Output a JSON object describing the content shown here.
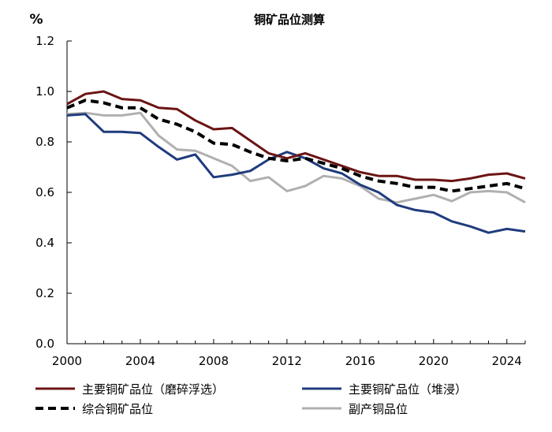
{
  "chart_data": {
    "type": "line",
    "title": "铜矿品位测算",
    "ylabel": "%",
    "xlabel": "",
    "xlim": [
      2000,
      2025
    ],
    "ylim": [
      0,
      1.2
    ],
    "yticks": [
      "0.0",
      "0.2",
      "0.4",
      "0.6",
      "0.8",
      "1.0",
      "1.2"
    ],
    "ytick_values": [
      0,
      0.2,
      0.4,
      0.6,
      0.8,
      1.0,
      1.2
    ],
    "xticks": [
      "2000",
      "2004",
      "2008",
      "2012",
      "2016",
      "2020",
      "2024"
    ],
    "xtick_values": [
      2000,
      2004,
      2008,
      2012,
      2016,
      2020,
      2024
    ],
    "x": [
      2000,
      2001,
      2002,
      2003,
      2004,
      2005,
      2006,
      2007,
      2008,
      2009,
      2010,
      2011,
      2012,
      2013,
      2014,
      2015,
      2016,
      2017,
      2018,
      2019,
      2020,
      2021,
      2022,
      2023,
      2024,
      2025
    ],
    "series": [
      {
        "name": "主要铜矿品位（磨碎浮选）",
        "color": "#6b1414",
        "style": "solid",
        "values": [
          0.95,
          0.99,
          1.0,
          0.97,
          0.965,
          0.935,
          0.93,
          0.885,
          0.85,
          0.855,
          0.805,
          0.755,
          0.735,
          0.755,
          0.73,
          0.705,
          0.68,
          0.665,
          0.665,
          0.65,
          0.65,
          0.645,
          0.655,
          0.67,
          0.675,
          0.655
        ]
      },
      {
        "name": "主要铜矿品位（堆浸）",
        "color": "#1f3c7d",
        "style": "solid",
        "values": [
          0.905,
          0.91,
          0.84,
          0.84,
          0.835,
          0.78,
          0.73,
          0.75,
          0.66,
          0.67,
          0.685,
          0.73,
          0.76,
          0.735,
          0.695,
          0.675,
          0.63,
          0.6,
          0.55,
          0.53,
          0.52,
          0.485,
          0.465,
          0.44,
          0.455,
          0.445
        ]
      },
      {
        "name": "综合铜矿品位",
        "color": "#000000",
        "style": "dashed",
        "values": [
          0.935,
          0.965,
          0.955,
          0.935,
          0.935,
          0.89,
          0.87,
          0.84,
          0.795,
          0.79,
          0.76,
          0.735,
          0.725,
          0.735,
          0.715,
          0.695,
          0.665,
          0.645,
          0.635,
          0.62,
          0.62,
          0.605,
          0.615,
          0.625,
          0.635,
          0.615
        ]
      },
      {
        "name": "副产铜品位",
        "color": "#b0b0b0",
        "style": "solid",
        "values": [
          0.91,
          0.915,
          0.905,
          0.905,
          0.915,
          0.825,
          0.77,
          0.765,
          0.735,
          0.705,
          0.645,
          0.66,
          0.605,
          0.625,
          0.665,
          0.655,
          0.625,
          0.575,
          0.56,
          0.575,
          0.59,
          0.565,
          0.6,
          0.605,
          0.6,
          0.56
        ]
      }
    ],
    "legend_position": "bottom",
    "grid": false
  }
}
